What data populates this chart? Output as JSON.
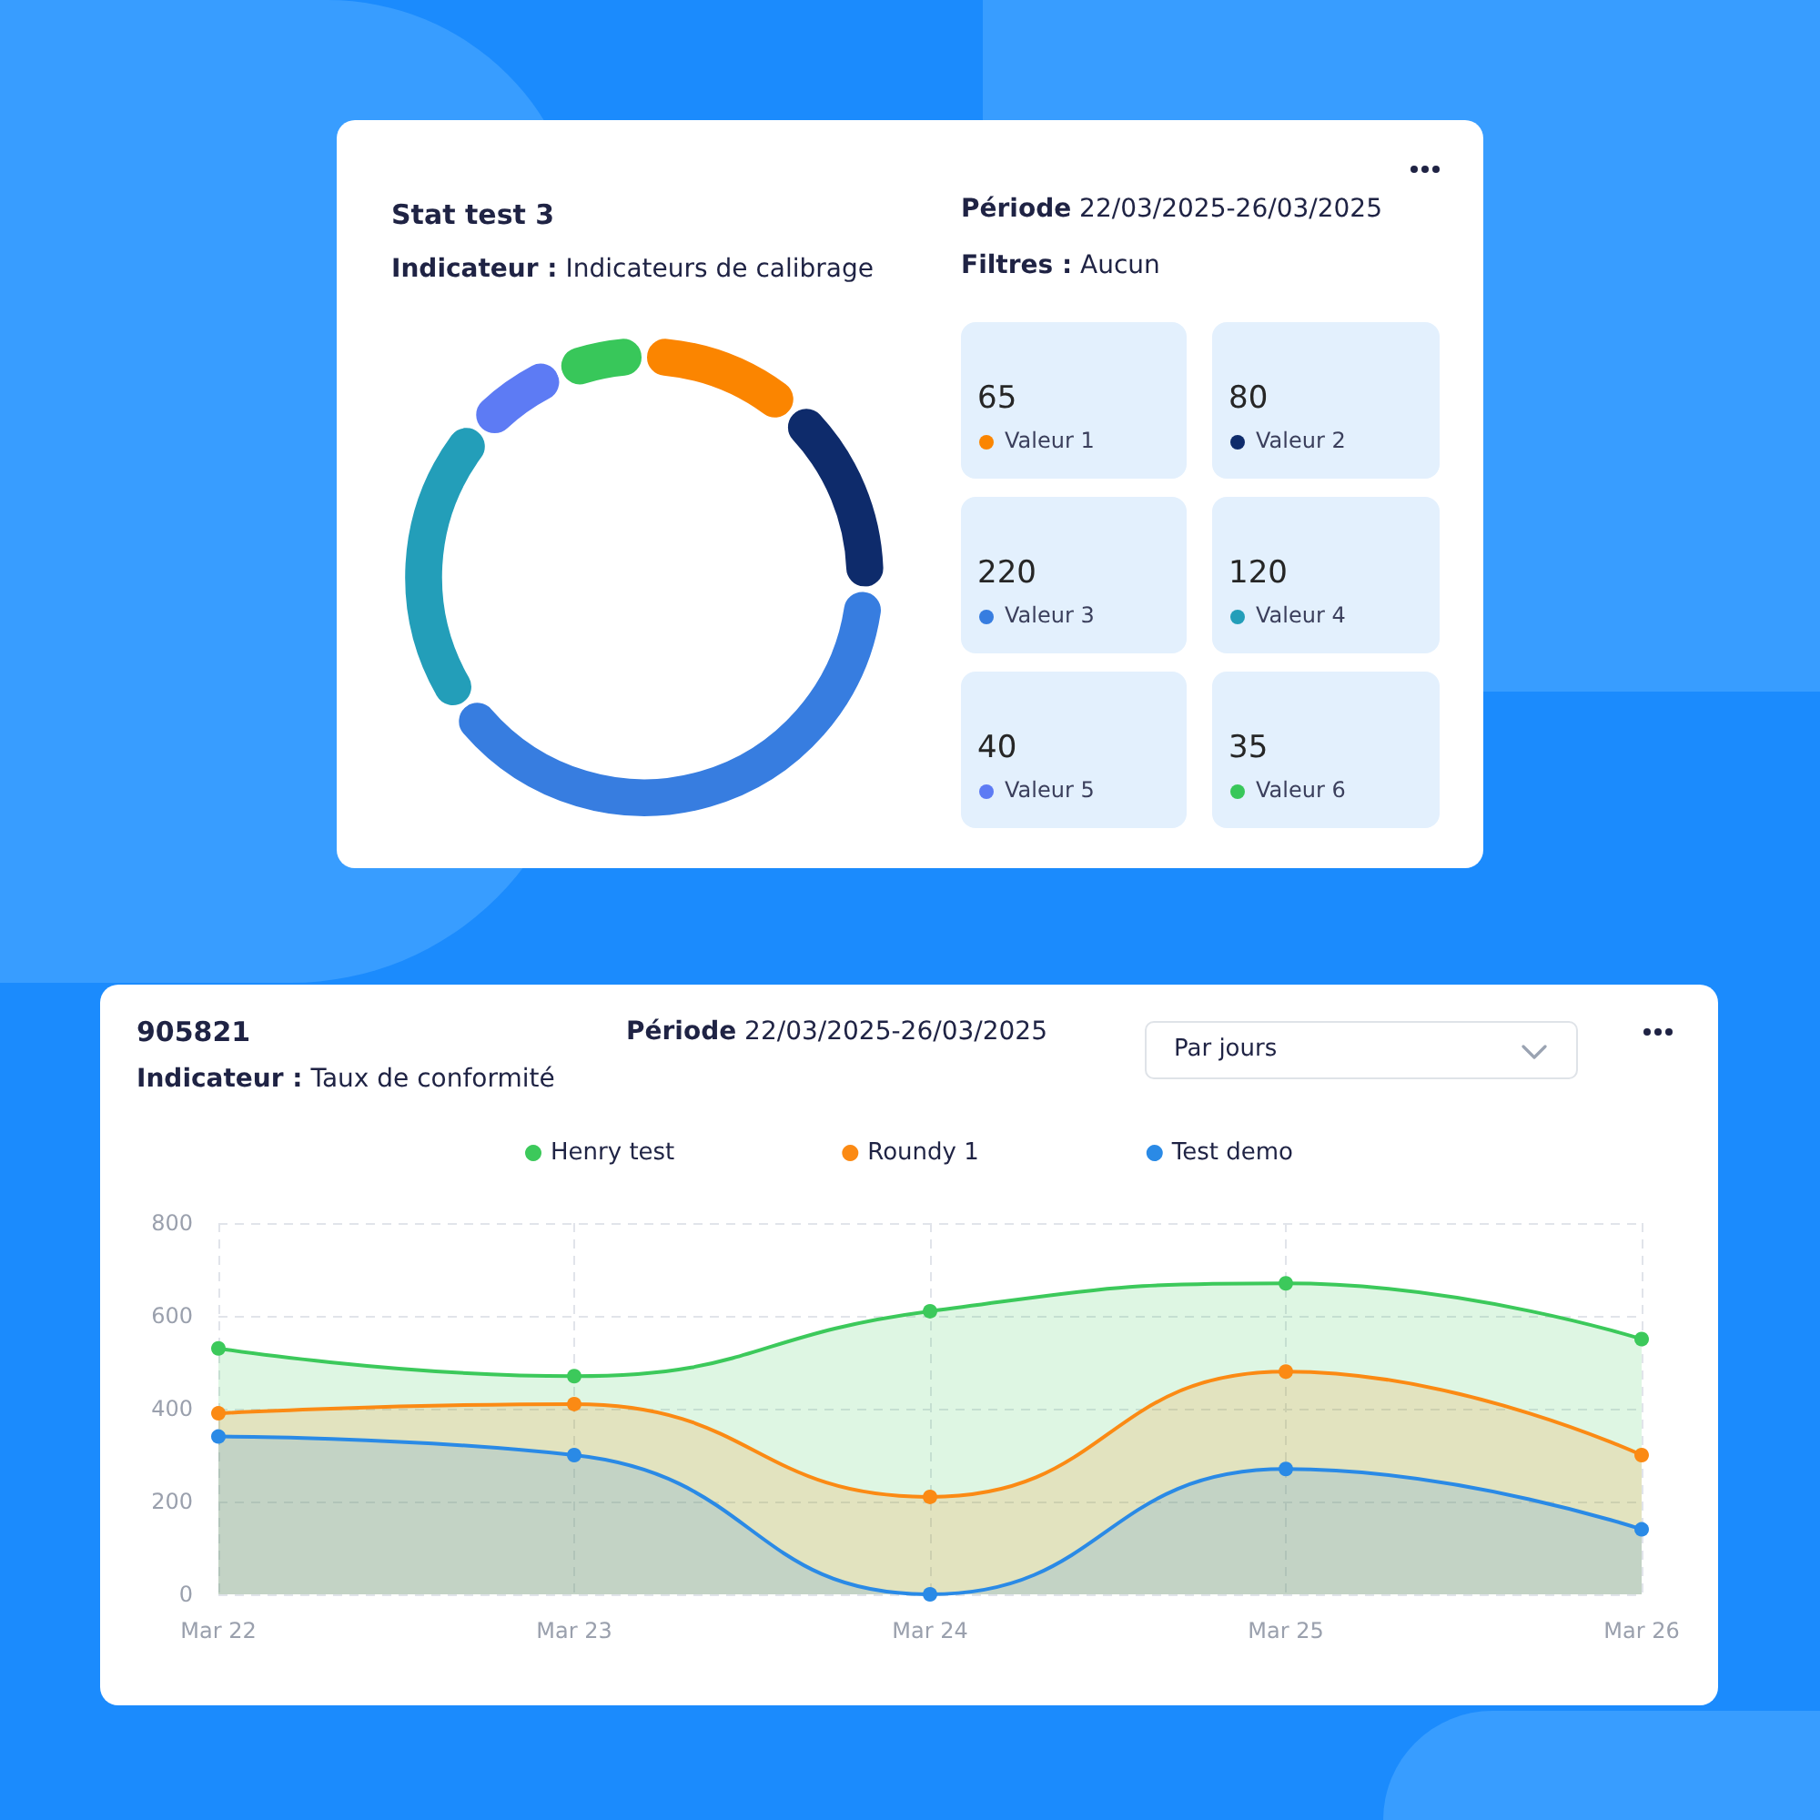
{
  "chart_data": [
    {
      "type": "donut",
      "title": "Stat test 3",
      "subtitle": "Indicateur : Indicateurs de calibrage",
      "annotations": [
        "Période 22/03/2025-26/03/2025",
        "Filtres : Aucun"
      ],
      "categories": [
        "Valeur 1",
        "Valeur 2",
        "Valeur 3",
        "Valeur 4",
        "Valeur 5",
        "Valeur 6"
      ],
      "values": [
        65,
        80,
        220,
        120,
        40,
        35
      ],
      "colors": [
        "#fb8500",
        "#0e2b6b",
        "#377de0",
        "#239eb9",
        "#5d7bf4",
        "#38c75a"
      ],
      "data_labels": true,
      "legend": "right"
    },
    {
      "type": "area",
      "title": "905821",
      "subtitle": "Indicateur : Taux de conformité",
      "annotations": [
        "Période 22/03/2025-26/03/2025",
        "Par jours"
      ],
      "categories": [
        "Mar 22",
        "Mar 23",
        "Mar 24",
        "Mar 25",
        "Mar 26"
      ],
      "series": [
        {
          "name": "Henry test",
          "color": "#3cc95b",
          "values": [
            530,
            470,
            610,
            670,
            550
          ]
        },
        {
          "name": "Roundy 1",
          "color": "#fb8a14",
          "values": [
            390,
            410,
            210,
            480,
            300
          ]
        },
        {
          "name": "Test demo",
          "color": "#2a8ae6",
          "values": [
            340,
            300,
            0,
            270,
            140
          ]
        }
      ],
      "ylim": [
        0,
        800
      ],
      "yticks": [
        0,
        200,
        400,
        600,
        800
      ],
      "grid": true,
      "legend": "top",
      "marker": "circle"
    }
  ]
}
